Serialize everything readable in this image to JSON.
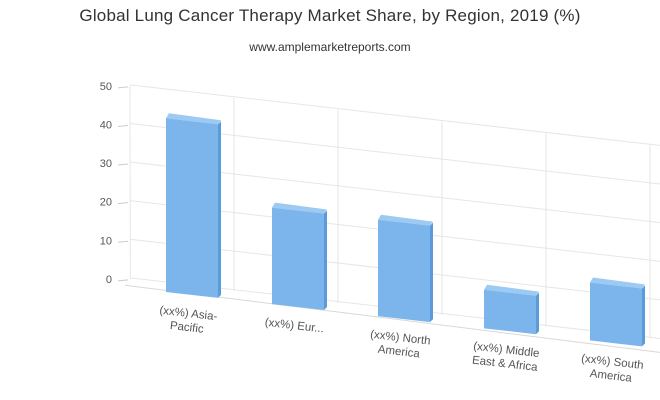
{
  "chart_data": {
    "type": "bar",
    "title": "Global Lung Cancer Therapy Market Share, by Region, 2019 (%)",
    "subtitle": "www.amplemarketreports.com",
    "categories": [
      [
        "(xx%) Asia-",
        "Pacific"
      ],
      [
        "(xx%) Eur..."
      ],
      [
        "(xx%) North",
        "America"
      ],
      [
        "(xx%) Middle",
        "East & Africa"
      ],
      [
        "(xx%) South",
        "America"
      ]
    ],
    "values": [
      45,
      25,
      25,
      10,
      15
    ],
    "ylim": [
      0,
      50
    ],
    "yticks": [
      0,
      10,
      20,
      30,
      40,
      50
    ],
    "grid": true,
    "legend": "none",
    "colors": {
      "bar_front": "#7cb5ec",
      "bar_side": "#5b9bd9",
      "bar_top": "#9ccaf2",
      "grid": "#e6e6e6"
    }
  }
}
